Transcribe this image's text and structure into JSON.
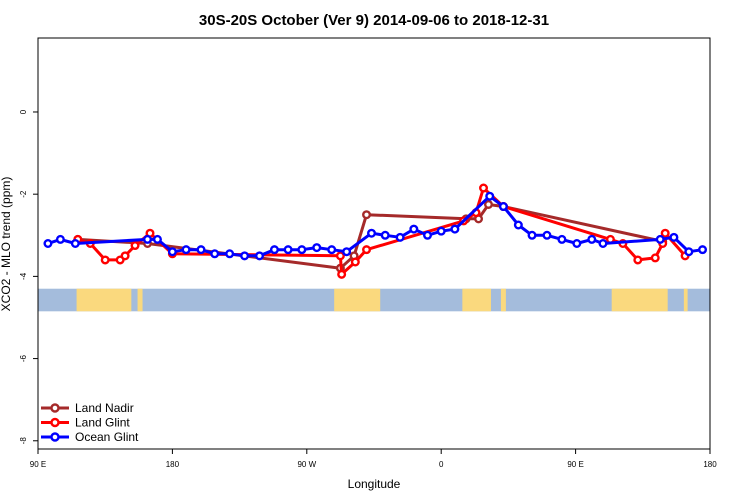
{
  "chart_data": {
    "type": "line",
    "title": "30S-20S October (Ver 9)   2014-09-06 to 2018-12-31",
    "xlabel": "Longitude",
    "ylabel": "XCO2 - MLO trend (ppm)",
    "xlim": [
      -90,
      180
    ],
    "ylim": [
      -8.2,
      1.8
    ],
    "x_ticks": [
      {
        "value": -90,
        "label": "90 E"
      },
      {
        "value": -36,
        "label": "180"
      },
      {
        "value": 18,
        "label": "90 W"
      },
      {
        "value": 72,
        "label": "0"
      },
      {
        "value": 126,
        "label": "90 E"
      },
      {
        "value": 180,
        "label": "180"
      }
    ],
    "y_ticks": [
      {
        "value": 0,
        "label": "0"
      },
      {
        "value": -2,
        "label": "-2"
      },
      {
        "value": -4,
        "label": "-4"
      },
      {
        "value": -6,
        "label": "-6"
      },
      {
        "value": -8,
        "label": "-8"
      }
    ],
    "grid": false,
    "legend_position": "bottom-left",
    "land_sea_band": {
      "y_range": [
        -4.85,
        -4.3
      ],
      "ocean_color": "#a4bcdc",
      "land_color": "#fad97e",
      "land_segments": [
        [
          -74.5,
          -52.5
        ],
        [
          -50,
          -48
        ],
        [
          29,
          47.5
        ],
        [
          80.5,
          92
        ],
        [
          96,
          98
        ],
        [
          140.5,
          163
        ],
        [
          169.5,
          171
        ]
      ]
    },
    "series": [
      {
        "name": "Land Nadir",
        "color": "#a52a2a",
        "points": [
          [
            -74,
            -3.1
          ],
          [
            -46,
            -3.2
          ],
          [
            31.5,
            -3.8
          ],
          [
            37,
            -3.5
          ],
          [
            42,
            -2.5
          ],
          [
            82,
            -2.6
          ],
          [
            87,
            -2.6
          ],
          [
            91,
            -2.25
          ],
          [
            97,
            -2.3
          ],
          [
            161,
            -3.15
          ]
        ]
      },
      {
        "name": "Land Glint",
        "color": "#ff0000",
        "points": [
          [
            -74,
            -3.1
          ],
          [
            -69,
            -3.2
          ],
          [
            -63,
            -3.6
          ],
          [
            -57,
            -3.6
          ],
          [
            -55,
            -3.5
          ],
          [
            -51,
            -3.25
          ],
          [
            -45,
            -2.95
          ],
          [
            -36,
            -3.45
          ],
          [
            31.5,
            -3.5
          ],
          [
            32,
            -3.95
          ],
          [
            37.5,
            -3.65
          ],
          [
            42,
            -3.35
          ],
          [
            81,
            -2.65
          ],
          [
            86,
            -2.45
          ],
          [
            89,
            -1.85
          ],
          [
            97,
            -2.3
          ],
          [
            140,
            -3.1
          ],
          [
            145,
            -3.2
          ],
          [
            151,
            -3.6
          ],
          [
            158,
            -3.55
          ],
          [
            161,
            -3.2
          ],
          [
            162,
            -2.95
          ],
          [
            170,
            -3.5
          ]
        ]
      },
      {
        "name": "Ocean Glint",
        "color": "#0000ff",
        "points": [
          [
            -86,
            -3.2
          ],
          [
            -81,
            -3.1
          ],
          [
            -75,
            -3.2
          ],
          [
            -46,
            -3.1
          ],
          [
            -42,
            -3.1
          ],
          [
            -36,
            -3.4
          ],
          [
            -30.5,
            -3.35
          ],
          [
            -24.5,
            -3.35
          ],
          [
            -19,
            -3.45
          ],
          [
            -13,
            -3.45
          ],
          [
            -7,
            -3.5
          ],
          [
            -1,
            -3.5
          ],
          [
            5,
            -3.35
          ],
          [
            10.5,
            -3.35
          ],
          [
            16,
            -3.35
          ],
          [
            22,
            -3.3
          ],
          [
            28,
            -3.35
          ],
          [
            34,
            -3.4
          ],
          [
            44,
            -2.95
          ],
          [
            49.5,
            -3
          ],
          [
            55.5,
            -3.05
          ],
          [
            61,
            -2.85
          ],
          [
            66.5,
            -3.0
          ],
          [
            72,
            -2.9
          ],
          [
            77.5,
            -2.85
          ],
          [
            91.5,
            -2.05
          ],
          [
            97,
            -2.3
          ],
          [
            103,
            -2.75
          ],
          [
            108.5,
            -3.0
          ],
          [
            114.5,
            -3.0
          ],
          [
            120.5,
            -3.1
          ],
          [
            126.5,
            -3.2
          ],
          [
            132.5,
            -3.1
          ],
          [
            137,
            -3.2
          ],
          [
            160,
            -3.1
          ],
          [
            165.5,
            -3.05
          ],
          [
            171.5,
            -3.4
          ],
          [
            177,
            -3.35
          ]
        ]
      }
    ]
  }
}
